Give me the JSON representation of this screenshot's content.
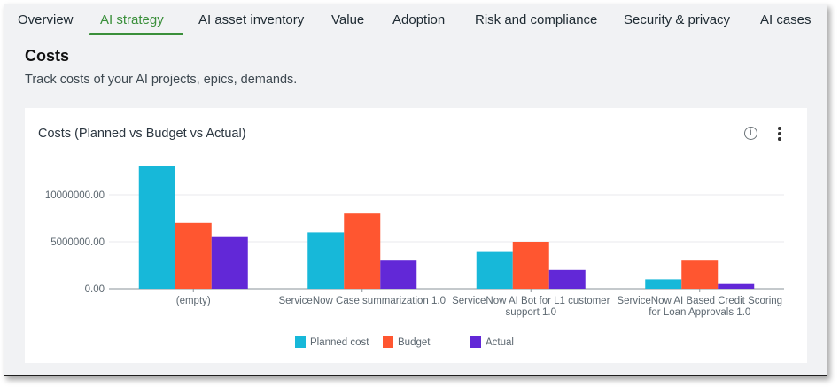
{
  "tabs": [
    {
      "label": "Overview",
      "active": false
    },
    {
      "label": "AI strategy",
      "active": true
    },
    {
      "label": "AI asset inventory",
      "active": false
    },
    {
      "label": "Value",
      "active": false
    },
    {
      "label": "Adoption",
      "active": false
    },
    {
      "label": "Risk and compliance",
      "active": false
    },
    {
      "label": "Security & privacy",
      "active": false
    },
    {
      "label": "AI cases",
      "active": false
    }
  ],
  "section": {
    "title": "Costs",
    "subtitle": "Track costs of your AI projects, epics, demands."
  },
  "card": {
    "title": "Costs (Planned vs Budget vs Actual)",
    "info_icon": "info-circle-icon",
    "more_icon": "more-vertical-icon",
    "info_glyph": "i"
  },
  "colors": {
    "accent": "#3a8f3a",
    "planned": "#17b8d9",
    "budget": "#ff5630",
    "actual": "#6228d7"
  },
  "chart_data": {
    "type": "bar",
    "title": "Costs (Planned vs Budget vs Actual)",
    "xlabel": "",
    "ylabel": "",
    "categories": [
      [
        "(empty)"
      ],
      [
        "ServiceNow Case summarization 1.0"
      ],
      [
        "ServiceNow AI Bot for L1 customer",
        "support 1.0"
      ],
      [
        "ServiceNow AI Based Credit Scoring",
        "for Loan Approvals 1.0"
      ]
    ],
    "series": [
      {
        "name": "Planned cost",
        "color": "#17b8d9",
        "values": [
          13100000,
          6000000,
          4000000,
          1000000
        ]
      },
      {
        "name": "Budget",
        "color": "#ff5630",
        "values": [
          7000000,
          8000000,
          5000000,
          3000000
        ]
      },
      {
        "name": "Actual",
        "color": "#6228d7",
        "values": [
          5500000,
          3000000,
          2000000,
          500000
        ]
      }
    ],
    "yticks": [
      0,
      5000000,
      10000000
    ],
    "ytick_labels": [
      "0.00",
      "5000000.00",
      "10000000.00"
    ],
    "ylim": [
      0,
      13100000
    ],
    "grid": true,
    "legend_position": "bottom-center"
  }
}
